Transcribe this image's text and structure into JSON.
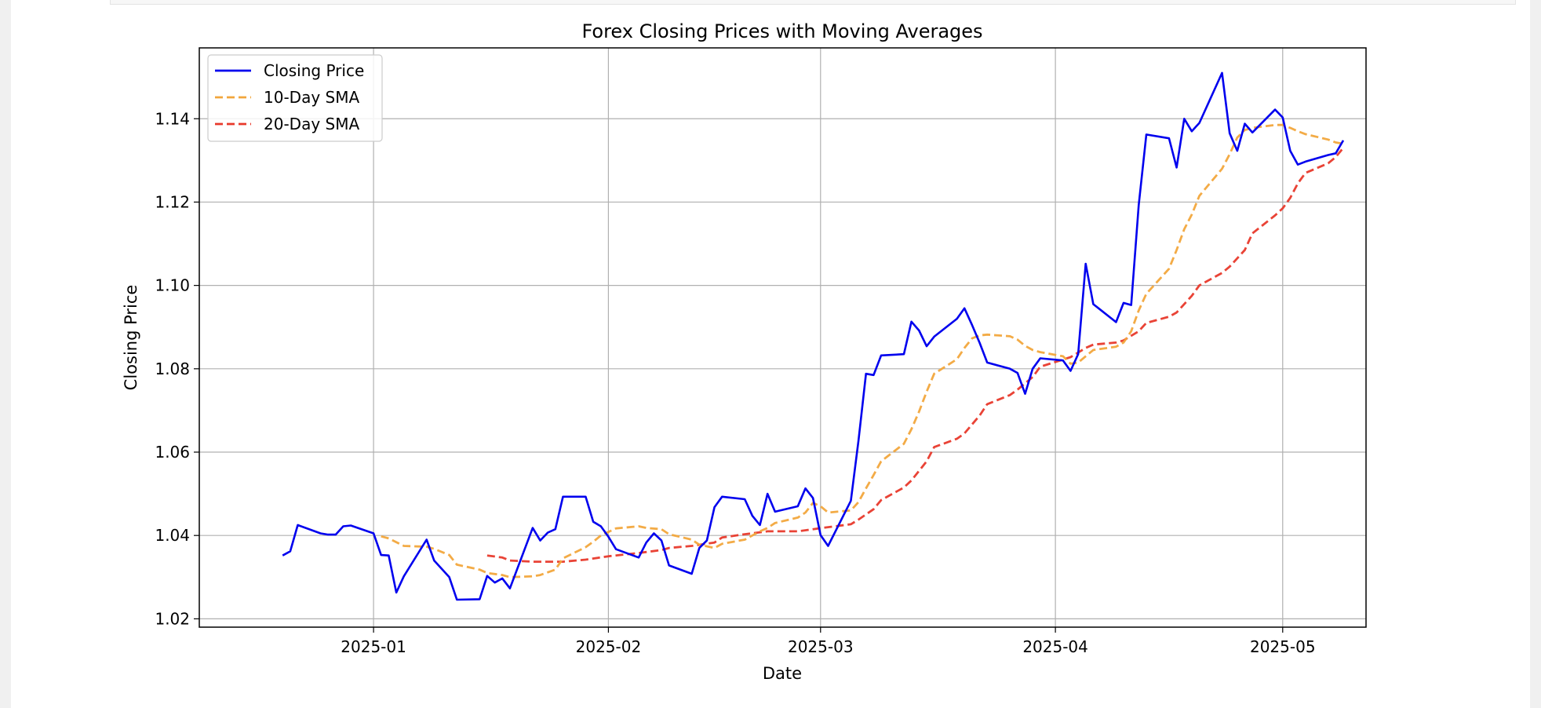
{
  "chart_data": {
    "type": "line",
    "title": "Forex Closing Prices with Moving Averages",
    "xlabel": "Date",
    "ylabel": "Closing Price",
    "x_ticks": [
      "2025-01",
      "2025-02",
      "2025-03",
      "2025-04",
      "2025-05"
    ],
    "y_ticks": [
      "1.02",
      "1.04",
      "1.06",
      "1.08",
      "1.10",
      "1.12",
      "1.14"
    ],
    "xlim": [
      "2024-12-09",
      "2025-05-12"
    ],
    "ylim": [
      1.018,
      1.157
    ],
    "grid": true,
    "legend_position": "top-left",
    "series": [
      {
        "name": "Closing Price",
        "color": "#0000ee",
        "style": "solid",
        "points": [
          [
            "2024-12-20",
            1.0352
          ],
          [
            "2024-12-21",
            1.0362
          ],
          [
            "2024-12-22",
            1.0425
          ],
          [
            "2024-12-25",
            1.0405
          ],
          [
            "2024-12-26",
            1.0402
          ],
          [
            "2024-12-27",
            1.0402
          ],
          [
            "2024-12-28",
            1.0422
          ],
          [
            "2024-12-29",
            1.0424
          ],
          [
            "2025-01-01",
            1.0405
          ],
          [
            "2025-01-02",
            1.0353
          ],
          [
            "2025-01-03",
            1.0352
          ],
          [
            "2025-01-04",
            1.0263
          ],
          [
            "2025-01-05",
            1.0302
          ],
          [
            "2025-01-08",
            1.039
          ],
          [
            "2025-01-09",
            1.034
          ],
          [
            "2025-01-11",
            1.03
          ],
          [
            "2025-01-12",
            1.0246
          ],
          [
            "2025-01-15",
            1.0247
          ],
          [
            "2025-01-16",
            1.0303
          ],
          [
            "2025-01-17",
            1.0287
          ],
          [
            "2025-01-18",
            1.0297
          ],
          [
            "2025-01-19",
            1.0273
          ],
          [
            "2025-01-22",
            1.0418
          ],
          [
            "2025-01-23",
            1.0388
          ],
          [
            "2025-01-24",
            1.0407
          ],
          [
            "2025-01-25",
            1.0415
          ],
          [
            "2025-01-26",
            1.0493
          ],
          [
            "2025-01-29",
            1.0493
          ],
          [
            "2025-01-30",
            1.0433
          ],
          [
            "2025-01-31",
            1.0422
          ],
          [
            "2025-02-01",
            1.0397
          ],
          [
            "2025-02-02",
            1.0367
          ],
          [
            "2025-02-05",
            1.0347
          ],
          [
            "2025-02-06",
            1.0383
          ],
          [
            "2025-02-07",
            1.0405
          ],
          [
            "2025-02-08",
            1.0388
          ],
          [
            "2025-02-09",
            1.0328
          ],
          [
            "2025-02-12",
            1.0308
          ],
          [
            "2025-02-13",
            1.037
          ],
          [
            "2025-02-14",
            1.0388
          ],
          [
            "2025-02-15",
            1.0468
          ],
          [
            "2025-02-16",
            1.0493
          ],
          [
            "2025-02-19",
            1.0487
          ],
          [
            "2025-02-20",
            1.0447
          ],
          [
            "2025-02-21",
            1.0425
          ],
          [
            "2025-02-22",
            1.05
          ],
          [
            "2025-02-23",
            1.0457
          ],
          [
            "2025-02-26",
            1.047
          ],
          [
            "2025-02-27",
            1.0513
          ],
          [
            "2025-02-28",
            1.049
          ],
          [
            "2025-03-01",
            1.0401
          ],
          [
            "2025-03-02",
            1.0375
          ],
          [
            "2025-03-05",
            1.0483
          ],
          [
            "2025-03-06",
            1.0627
          ],
          [
            "2025-03-07",
            1.0788
          ],
          [
            "2025-03-08",
            1.0785
          ],
          [
            "2025-03-09",
            1.0832
          ],
          [
            "2025-03-12",
            1.0835
          ],
          [
            "2025-03-13",
            1.0913
          ],
          [
            "2025-03-14",
            1.0892
          ],
          [
            "2025-03-15",
            1.0854
          ],
          [
            "2025-03-16",
            1.0877
          ],
          [
            "2025-03-19",
            1.092
          ],
          [
            "2025-03-20",
            1.0945
          ],
          [
            "2025-03-21",
            1.0905
          ],
          [
            "2025-03-22",
            1.0862
          ],
          [
            "2025-03-23",
            1.0815
          ],
          [
            "2025-03-26",
            1.08
          ],
          [
            "2025-03-27",
            1.079
          ],
          [
            "2025-03-28",
            1.074
          ],
          [
            "2025-03-29",
            1.08
          ],
          [
            "2025-03-30",
            1.0825
          ],
          [
            "2025-04-02",
            1.082
          ],
          [
            "2025-04-03",
            1.0795
          ],
          [
            "2025-04-04",
            1.0835
          ],
          [
            "2025-04-05",
            1.1052
          ],
          [
            "2025-04-06",
            1.0955
          ],
          [
            "2025-04-09",
            1.0912
          ],
          [
            "2025-04-10",
            1.0958
          ],
          [
            "2025-04-11",
            1.0953
          ],
          [
            "2025-04-12",
            1.1193
          ],
          [
            "2025-04-13",
            1.1362
          ],
          [
            "2025-04-16",
            1.1353
          ],
          [
            "2025-04-17",
            1.1283
          ],
          [
            "2025-04-18",
            1.14
          ],
          [
            "2025-04-19",
            1.137
          ],
          [
            "2025-04-20",
            1.139
          ],
          [
            "2025-04-23",
            1.151
          ],
          [
            "2025-04-24",
            1.1365
          ],
          [
            "2025-04-25",
            1.1323
          ],
          [
            "2025-04-26",
            1.1388
          ],
          [
            "2025-04-27",
            1.1367
          ],
          [
            "2025-04-30",
            1.1422
          ],
          [
            "2025-05-01",
            1.1403
          ],
          [
            "2025-05-02",
            1.1323
          ],
          [
            "2025-05-03",
            1.129
          ],
          [
            "2025-05-04",
            1.1297
          ],
          [
            "2025-05-07",
            1.1313
          ],
          [
            "2025-05-08",
            1.1317
          ],
          [
            "2025-05-09",
            1.1348
          ]
        ]
      },
      {
        "name": "10-Day SMA",
        "color": "#f2a63c",
        "style": "dashed",
        "points": [
          [
            "2025-01-02",
            1.0398
          ],
          [
            "2025-01-03",
            1.0393
          ],
          [
            "2025-01-05",
            1.0375
          ],
          [
            "2025-01-08",
            1.0373
          ],
          [
            "2025-01-09",
            1.0368
          ],
          [
            "2025-01-11",
            1.0353
          ],
          [
            "2025-01-12",
            1.033
          ],
          [
            "2025-01-15",
            1.0318
          ],
          [
            "2025-01-16",
            1.031
          ],
          [
            "2025-01-18",
            1.0305
          ],
          [
            "2025-01-19",
            1.03
          ],
          [
            "2025-01-22",
            1.0302
          ],
          [
            "2025-01-23",
            1.0305
          ],
          [
            "2025-01-25",
            1.0318
          ],
          [
            "2025-01-26",
            1.0345
          ],
          [
            "2025-01-29",
            1.0372
          ],
          [
            "2025-01-30",
            1.0385
          ],
          [
            "2025-01-31",
            1.04
          ],
          [
            "2025-02-02",
            1.0417
          ],
          [
            "2025-02-05",
            1.0422
          ],
          [
            "2025-02-06",
            1.0418
          ],
          [
            "2025-02-08",
            1.0415
          ],
          [
            "2025-02-09",
            1.0403
          ],
          [
            "2025-02-12",
            1.039
          ],
          [
            "2025-02-13",
            1.0378
          ],
          [
            "2025-02-15",
            1.037
          ],
          [
            "2025-02-16",
            1.038
          ],
          [
            "2025-02-19",
            1.039
          ],
          [
            "2025-02-20",
            1.04
          ],
          [
            "2025-02-21",
            1.041
          ],
          [
            "2025-02-22",
            1.0418
          ],
          [
            "2025-02-23",
            1.043
          ],
          [
            "2025-02-26",
            1.0443
          ],
          [
            "2025-02-27",
            1.0455
          ],
          [
            "2025-02-28",
            1.0478
          ],
          [
            "2025-03-01",
            1.047
          ],
          [
            "2025-03-02",
            1.0455
          ],
          [
            "2025-03-05",
            1.046
          ],
          [
            "2025-03-06",
            1.048
          ],
          [
            "2025-03-07",
            1.0513
          ],
          [
            "2025-03-08",
            1.0545
          ],
          [
            "2025-03-09",
            1.0578
          ],
          [
            "2025-03-12",
            1.062
          ],
          [
            "2025-03-13",
            1.0655
          ],
          [
            "2025-03-14",
            1.0697
          ],
          [
            "2025-03-15",
            1.0745
          ],
          [
            "2025-03-16",
            1.0788
          ],
          [
            "2025-03-19",
            1.0823
          ],
          [
            "2025-03-20",
            1.085
          ],
          [
            "2025-03-21",
            1.0873
          ],
          [
            "2025-03-22",
            1.088
          ],
          [
            "2025-03-23",
            1.0882
          ],
          [
            "2025-03-26",
            1.0878
          ],
          [
            "2025-03-27",
            1.087
          ],
          [
            "2025-03-28",
            1.0855
          ],
          [
            "2025-03-29",
            1.0845
          ],
          [
            "2025-03-30",
            1.084
          ],
          [
            "2025-04-02",
            1.083
          ],
          [
            "2025-04-03",
            1.0812
          ],
          [
            "2025-04-04",
            1.0815
          ],
          [
            "2025-04-05",
            1.083
          ],
          [
            "2025-04-06",
            1.0845
          ],
          [
            "2025-04-09",
            1.0853
          ],
          [
            "2025-04-10",
            1.0863
          ],
          [
            "2025-04-11",
            1.089
          ],
          [
            "2025-04-12",
            1.094
          ],
          [
            "2025-04-13",
            1.098
          ],
          [
            "2025-04-16",
            1.104
          ],
          [
            "2025-04-17",
            1.1085
          ],
          [
            "2025-04-18",
            1.1135
          ],
          [
            "2025-04-19",
            1.117
          ],
          [
            "2025-04-20",
            1.1215
          ],
          [
            "2025-04-23",
            1.128
          ],
          [
            "2025-04-24",
            1.1315
          ],
          [
            "2025-04-25",
            1.1355
          ],
          [
            "2025-04-26",
            1.1373
          ],
          [
            "2025-04-27",
            1.1378
          ],
          [
            "2025-04-30",
            1.1385
          ],
          [
            "2025-05-01",
            1.1385
          ],
          [
            "2025-05-02",
            1.1378
          ],
          [
            "2025-05-03",
            1.137
          ],
          [
            "2025-05-04",
            1.1363
          ],
          [
            "2025-05-07",
            1.135
          ],
          [
            "2025-05-08",
            1.1343
          ],
          [
            "2025-05-09",
            1.134
          ]
        ]
      },
      {
        "name": "20-Day SMA",
        "color": "#e8392b",
        "style": "dashed",
        "points": [
          [
            "2025-01-16",
            1.0352
          ],
          [
            "2025-01-18",
            1.0347
          ],
          [
            "2025-01-19",
            1.034
          ],
          [
            "2025-01-22",
            1.0337
          ],
          [
            "2025-01-25",
            1.0337
          ],
          [
            "2025-01-26",
            1.0337
          ],
          [
            "2025-01-29",
            1.0342
          ],
          [
            "2025-02-01",
            1.035
          ],
          [
            "2025-02-05",
            1.0358
          ],
          [
            "2025-02-08",
            1.0365
          ],
          [
            "2025-02-09",
            1.037
          ],
          [
            "2025-02-12",
            1.0375
          ],
          [
            "2025-02-15",
            1.0383
          ],
          [
            "2025-02-16",
            1.0395
          ],
          [
            "2025-02-19",
            1.0403
          ],
          [
            "2025-02-22",
            1.041
          ],
          [
            "2025-02-26",
            1.041
          ],
          [
            "2025-02-28",
            1.0415
          ],
          [
            "2025-03-02",
            1.042
          ],
          [
            "2025-03-05",
            1.0427
          ],
          [
            "2025-03-06",
            1.0438
          ],
          [
            "2025-03-08",
            1.0463
          ],
          [
            "2025-03-09",
            1.0485
          ],
          [
            "2025-03-12",
            1.0515
          ],
          [
            "2025-03-13",
            1.0532
          ],
          [
            "2025-03-15",
            1.0578
          ],
          [
            "2025-03-16",
            1.0612
          ],
          [
            "2025-03-19",
            1.0632
          ],
          [
            "2025-03-20",
            1.0645
          ],
          [
            "2025-03-22",
            1.0688
          ],
          [
            "2025-03-23",
            1.0715
          ],
          [
            "2025-03-26",
            1.0737
          ],
          [
            "2025-03-27",
            1.075
          ],
          [
            "2025-03-29",
            1.078
          ],
          [
            "2025-03-30",
            1.0805
          ],
          [
            "2025-04-02",
            1.0822
          ],
          [
            "2025-04-03",
            1.0828
          ],
          [
            "2025-04-05",
            1.085
          ],
          [
            "2025-04-06",
            1.0858
          ],
          [
            "2025-04-09",
            1.0863
          ],
          [
            "2025-04-10",
            1.0868
          ],
          [
            "2025-04-12",
            1.089
          ],
          [
            "2025-04-13",
            1.091
          ],
          [
            "2025-04-16",
            1.0925
          ],
          [
            "2025-04-17",
            1.0935
          ],
          [
            "2025-04-19",
            1.0975
          ],
          [
            "2025-04-20",
            1.1
          ],
          [
            "2025-04-23",
            1.103
          ],
          [
            "2025-04-24",
            1.1045
          ],
          [
            "2025-04-26",
            1.1085
          ],
          [
            "2025-04-27",
            1.1125
          ],
          [
            "2025-04-30",
            1.1168
          ],
          [
            "2025-05-01",
            1.1185
          ],
          [
            "2025-05-02",
            1.121
          ],
          [
            "2025-05-03",
            1.1245
          ],
          [
            "2025-05-04",
            1.127
          ],
          [
            "2025-05-07",
            1.1293
          ],
          [
            "2025-05-08",
            1.1308
          ],
          [
            "2025-05-09",
            1.133
          ]
        ]
      }
    ]
  }
}
